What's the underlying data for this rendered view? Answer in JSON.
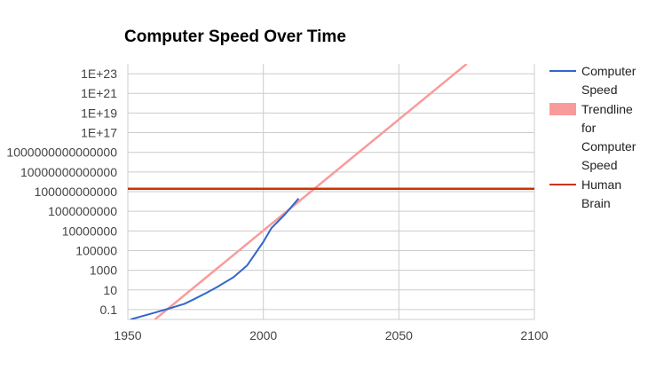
{
  "chart_data": {
    "type": "line",
    "title": "Computer Speed Over Time",
    "xlabel": "",
    "ylabel": "",
    "y_scale": "log",
    "grid": true,
    "legend_placement": "right",
    "xlim": [
      1950,
      2100
    ],
    "ylim": [
      0.01,
      1e+24
    ],
    "x_ticks": [
      1950,
      2000,
      2050,
      2100
    ],
    "x_tick_labels": [
      "1950",
      "2000",
      "2050",
      "2100"
    ],
    "y_ticks": [
      0.1,
      10,
      1000,
      100000,
      10000000,
      1000000000,
      100000000000,
      10000000000000,
      1000000000000000,
      1e+17,
      1e+19,
      1e+21,
      1e+23
    ],
    "y_tick_labels": [
      "0.1",
      "10",
      "1000",
      "100000",
      "10000000",
      "1000000000",
      "100000000000",
      "10000000000000",
      "1000000000000000",
      "1E+17",
      "1E+19",
      "1E+21",
      "1E+23"
    ],
    "series": [
      {
        "name": "Computer Speed",
        "color": "#3366cc",
        "style": "line",
        "x": [
          1951,
          1960,
          1966,
          1971,
          1974,
          1979,
          1983,
          1989,
          1994,
          2000,
          2003,
          2008,
          2013
        ],
        "y": [
          0.01,
          0.05,
          0.15,
          0.4,
          1,
          5,
          20,
          200,
          3000,
          800000,
          20000000,
          500000000,
          20000000000
        ]
      },
      {
        "name": "Trendline for Computer Speed",
        "color": "#f99b9b",
        "style": "line",
        "x": [
          1960,
          2075
        ],
        "y": [
          0.01,
          1e+24
        ]
      },
      {
        "name": "Human Brain",
        "color": "#cc3300",
        "style": "line",
        "x": [
          1950,
          2100
        ],
        "y": [
          200000000000,
          200000000000
        ]
      }
    ],
    "legend": [
      {
        "lines": [
          "Computer",
          "Speed"
        ],
        "color": "#3366cc",
        "kind": "line"
      },
      {
        "lines": [
          "Trendline",
          "for",
          "Computer",
          "Speed"
        ],
        "color": "#f99b9b",
        "kind": "box"
      },
      {
        "lines": [
          "Human",
          "Brain"
        ],
        "color": "#cc3300",
        "kind": "line"
      }
    ]
  }
}
